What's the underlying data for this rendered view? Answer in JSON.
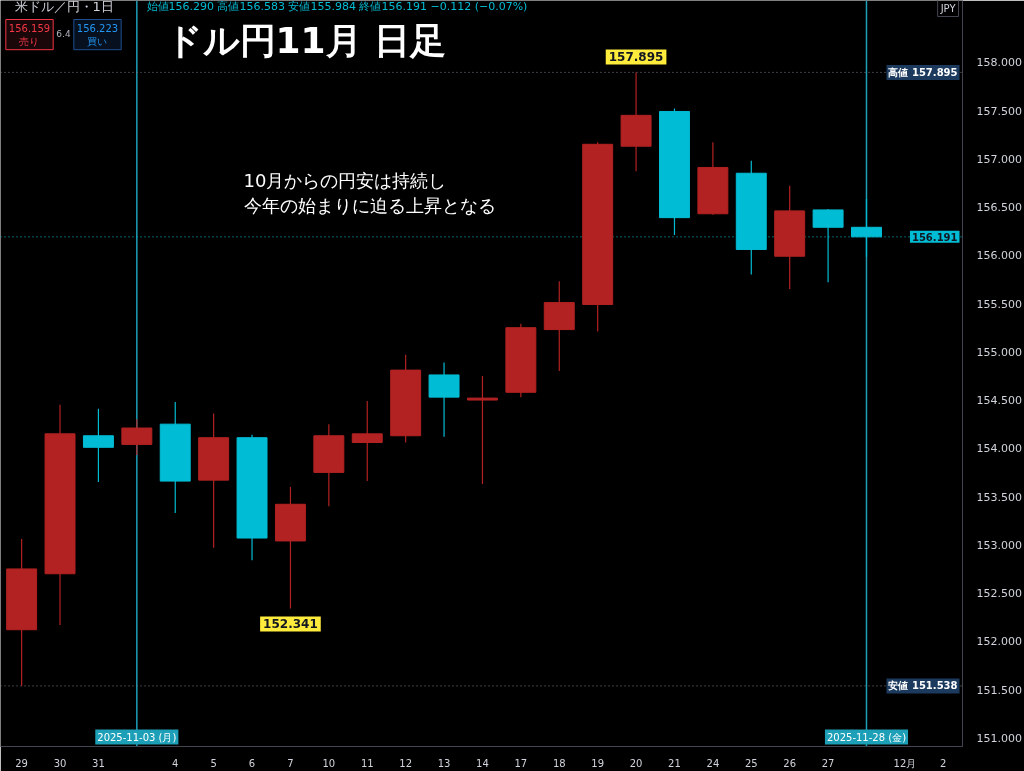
{
  "chart_data": {
    "type": "candlestick",
    "title": "ドル円11月 日足",
    "subtitle": "米ドル／円・1日",
    "categories": [
      "29",
      "30",
      "31",
      "2025-11-03 (月)",
      "4",
      "5",
      "6",
      "7",
      "10",
      "11",
      "12",
      "13",
      "14",
      "17",
      "18",
      "19",
      "20",
      "21",
      "24",
      "25",
      "26",
      "27",
      "2025-11-28 (金)",
      "12月",
      "2"
    ],
    "ohlc": [
      [
        152.12,
        153.06,
        151.538,
        152.75
      ],
      [
        152.7,
        154.45,
        152.17,
        154.15
      ],
      [
        154.13,
        154.41,
        153.65,
        154.01
      ],
      [
        154.04,
        154.3,
        153.93,
        154.21
      ],
      [
        154.25,
        154.48,
        153.33,
        153.66
      ],
      [
        153.67,
        154.36,
        152.97,
        154.11
      ],
      [
        154.11,
        154.14,
        152.84,
        153.07
      ],
      [
        153.04,
        153.6,
        152.341,
        153.42
      ],
      [
        153.75,
        154.25,
        153.4,
        154.13
      ],
      [
        154.06,
        154.49,
        153.66,
        154.15
      ],
      [
        154.13,
        154.97,
        154.06,
        154.81
      ],
      [
        154.76,
        154.89,
        154.12,
        154.53
      ],
      [
        154.5,
        154.75,
        153.63,
        154.52
      ],
      [
        154.58,
        155.29,
        154.53,
        155.25
      ],
      [
        155.23,
        155.73,
        154.8,
        155.51
      ],
      [
        155.49,
        157.17,
        155.21,
        157.15
      ],
      [
        157.13,
        157.895,
        156.87,
        157.45
      ],
      [
        157.49,
        157.52,
        156.21,
        156.39
      ],
      [
        156.43,
        157.17,
        156.42,
        156.91
      ],
      [
        156.85,
        156.98,
        155.8,
        156.06
      ],
      [
        155.99,
        156.72,
        155.65,
        156.46
      ],
      [
        156.47,
        156.48,
        155.72,
        156.29
      ],
      [
        156.29,
        156.583,
        155.984,
        156.191
      ],
      null,
      null
    ],
    "colors": [
      "#b22222",
      "#b22222",
      "#00bcd4",
      "#b22222",
      "#00bcd4",
      "#b22222",
      "#00bcd4",
      "#b22222",
      "#b22222",
      "#b22222",
      "#b22222",
      "#00bcd4",
      "#b22222",
      "#b22222",
      "#b22222",
      "#b22222",
      "#b22222",
      "#00bcd4",
      "#b22222",
      "#00bcd4",
      "#b22222",
      "#00bcd4",
      "#00bcd4",
      null,
      null
    ],
    "ylim": [
      150.91,
      158.64
    ],
    "yticks": [
      {
        "value": 151,
        "label": "151.000"
      },
      {
        "value": 151.5,
        "label": "151.500"
      },
      {
        "value": 152,
        "label": "152.000"
      },
      {
        "value": 152.5,
        "label": "152.500"
      },
      {
        "value": 153,
        "label": "153.000"
      },
      {
        "value": 153.5,
        "label": "153.500"
      },
      {
        "value": 154,
        "label": "154.000"
      },
      {
        "value": 154.5,
        "label": "154.500"
      },
      {
        "value": 155,
        "label": "155.000"
      },
      {
        "value": 155.5,
        "label": "155.500"
      },
      {
        "value": 156,
        "label": "156.000"
      },
      {
        "value": 156.5,
        "label": "156.500"
      },
      {
        "value": 157,
        "label": "157.000"
      },
      {
        "value": 157.5,
        "label": "157.500"
      },
      {
        "value": 158,
        "label": "158.000"
      }
    ],
    "ref_lines": [
      {
        "axis": "x",
        "value": "2025-11-03 (月)",
        "color": "#1e9fb8"
      },
      {
        "axis": "x",
        "value": "2025-11-28 (金)",
        "color": "#1e9fb8"
      },
      {
        "axis": "y",
        "value": 157.895,
        "label": "高値 157.895",
        "color": "#787b86",
        "line_style": "dotted"
      },
      {
        "axis": "y",
        "value": 151.538,
        "label": "安値 151.538",
        "color": "#787b86",
        "line_style": "dotted"
      },
      {
        "axis": "y",
        "value": 156.191,
        "label": "156.191",
        "color": "#00bcd4",
        "line_style": "dotted"
      }
    ],
    "annotations": [
      "始値156.290 高値156.583 安値155.984 終値156.191 −0.112 (−0.07%)",
      "156.159\n売り",
      "6.4",
      "156.223\n買い",
      "JPY",
      "10月からの円安は持続し",
      "今年の始まりに迫る上昇となる",
      {
        "text": "157.895",
        "x": "20",
        "y": 157.895
      },
      {
        "text": "152.341",
        "x": "7",
        "y": 152.341
      }
    ]
  }
}
